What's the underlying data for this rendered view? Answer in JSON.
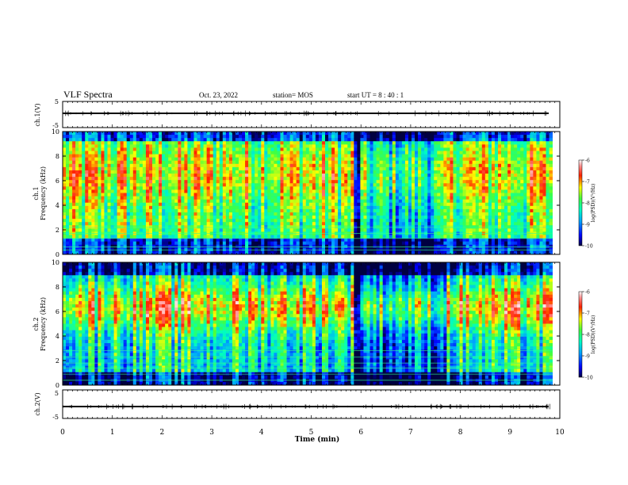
{
  "header": {
    "title": "VLF Spectra",
    "date": "Oct. 23, 2022",
    "station": "station= MOS",
    "start_ut": "start UT =   8 : 40 : 1"
  },
  "chart_data": [
    {
      "type": "line",
      "ylabel": "ch.1(V)",
      "ylim": [
        -5,
        5
      ],
      "yticks": [
        "5",
        "-5"
      ],
      "trace_level": 0
    },
    {
      "type": "heatmap",
      "ylabel_top": "ch.1",
      "ylabel": "Frequency (kHz)",
      "ylim": [
        0,
        10
      ],
      "yticks": [
        "0",
        "2",
        "4",
        "6",
        "8",
        "10"
      ],
      "xlim": [
        0,
        10
      ],
      "colorbar": {
        "label": "log(PSD)(V²/Hz)",
        "range": [
          -10,
          -6
        ],
        "ticks": [
          "-6",
          "-7",
          "-8",
          "-9",
          "-10"
        ]
      },
      "description_quiet_window_min": [
        5.9,
        6.0
      ]
    },
    {
      "type": "heatmap",
      "ylabel_top": "ch.2",
      "ylabel": "Frequency (kHz)",
      "ylim": [
        0,
        10
      ],
      "yticks": [
        "0",
        "2",
        "4",
        "6",
        "8",
        "10"
      ],
      "xlim": [
        0,
        10
      ],
      "colorbar": {
        "label": "log(PSD)(V²/Hz)",
        "range": [
          -10,
          -6
        ],
        "ticks": [
          "-6",
          "-7",
          "-8",
          "-9",
          "-10"
        ]
      }
    },
    {
      "type": "line",
      "ylabel": "ch.2(V)",
      "ylim": [
        -5,
        5
      ],
      "yticks": [
        "5",
        "-5"
      ],
      "trace_level": 0
    }
  ],
  "xaxis": {
    "label": "Time (min)",
    "range": [
      0,
      10
    ],
    "ticks": [
      "0",
      "1",
      "2",
      "3",
      "4",
      "5",
      "6",
      "7",
      "8",
      "9",
      "10"
    ],
    "data_end": 9.85
  }
}
